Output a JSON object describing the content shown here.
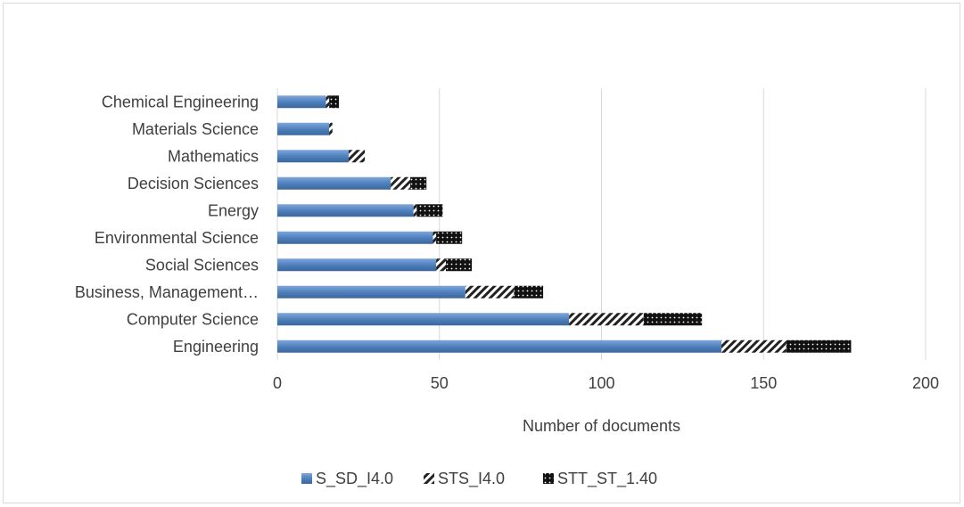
{
  "chart_data": {
    "type": "bar",
    "orientation": "horizontal",
    "stacked": true,
    "categories": [
      "Engineering",
      "Computer Science",
      "Business, Management…",
      "Social Sciences",
      "Environmental Science",
      "Energy",
      "Decision Sciences",
      "Mathematics",
      "Materials Science",
      "Chemical Engineering"
    ],
    "series": [
      {
        "name": "S_SD_I4.0",
        "values": [
          137,
          90,
          58,
          49,
          48,
          42,
          35,
          22,
          16,
          15
        ],
        "color": "#4f81bd",
        "pattern": "solid"
      },
      {
        "name": "STS_I4.0",
        "values": [
          20,
          23,
          15,
          3,
          1,
          1,
          6,
          5,
          1,
          1
        ],
        "color": "#000000",
        "pattern": "diagonal-stripes"
      },
      {
        "name": "STT_ST_1.40",
        "values": [
          20,
          18,
          9,
          8,
          8,
          8,
          5,
          0,
          0,
          3
        ],
        "color": "#000000",
        "pattern": "dotted-dark"
      }
    ],
    "xlabel": "Number of documents",
    "ylabel": "",
    "xlim": [
      0,
      200
    ],
    "x_ticks": [
      0,
      50,
      100,
      150,
      200
    ],
    "grid": true,
    "legend_position": "bottom"
  }
}
